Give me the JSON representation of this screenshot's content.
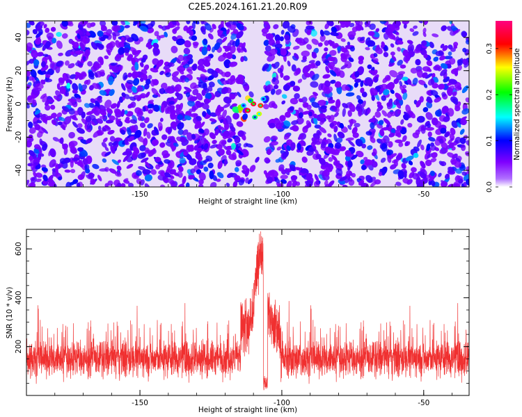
{
  "title": "C2E5.2024.161.21.20.R09",
  "chart_data": [
    {
      "type": "heatmap",
      "xlabel": "Height of straight line (km)",
      "ylabel": "Frequency (Hz)",
      "xlim": [
        -190,
        -34
      ],
      "ylim": [
        -50,
        50
      ],
      "xticks": [
        -150,
        -100,
        -50
      ],
      "yticks": [
        -40,
        -20,
        0,
        20,
        40
      ],
      "colorbar": {
        "label": "Normalized spectral amplitude",
        "range": [
          0,
          0.36
        ],
        "ticks": [
          0.0,
          0.1,
          0.2,
          0.3
        ],
        "colormap": [
          "#ffffff",
          "#7f00ff",
          "#0000ff",
          "#00ffff",
          "#00ff00",
          "#ffff00",
          "#ff0000",
          "#ff007f"
        ]
      },
      "background_level": 0.04,
      "quiet_band_x": [
        -112,
        -106
      ],
      "peak": {
        "x": -109,
        "y": -3,
        "amplitude": 0.33
      }
    },
    {
      "type": "line",
      "xlabel": "Height of straight line (km)",
      "ylabel": "SNR (10 * v/v)",
      "xlim": [
        -190,
        -34
      ],
      "ylim": [
        0,
        680
      ],
      "xticks": [
        -150,
        -100,
        -50
      ],
      "yticks": [
        200,
        400,
        600
      ],
      "series": [
        {
          "color": "#f03030",
          "baseline": 130,
          "noise_range": [
            40,
            300
          ],
          "peak_x": -107.5,
          "peak_value": 675
        }
      ]
    }
  ]
}
